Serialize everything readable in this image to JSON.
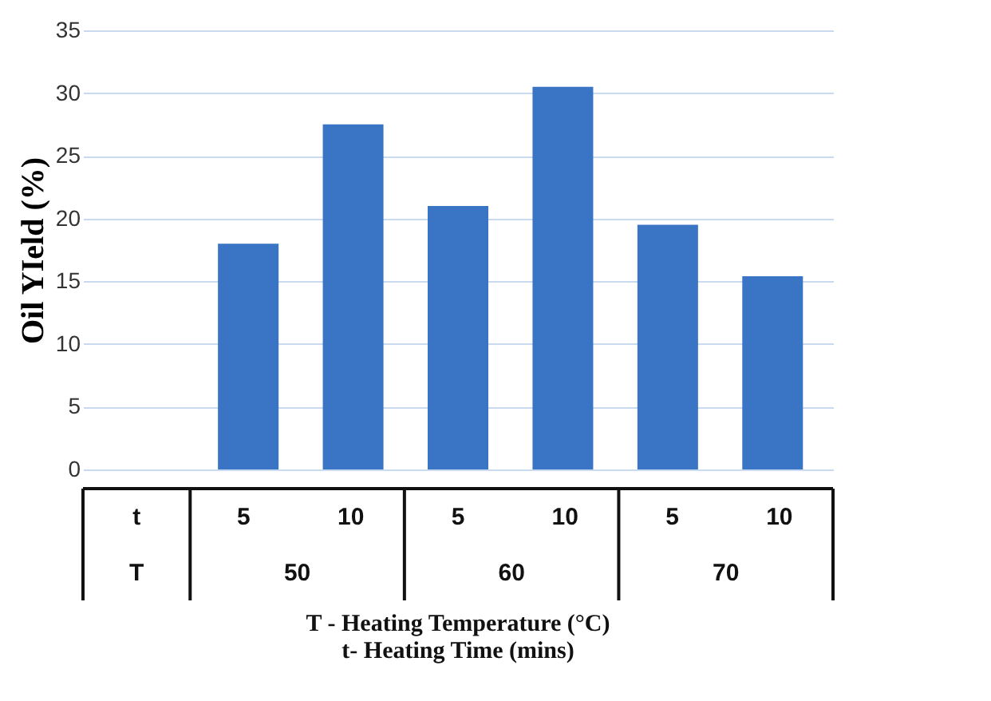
{
  "chart_data": {
    "type": "bar",
    "ylabel": "Oil YIeld (%)",
    "xlabel": "T - Heating Temperature (°C)\nt- Heating Time (mins)",
    "categories": [
      null,
      "5",
      "10",
      "5",
      "10",
      "5",
      "10"
    ],
    "values": [
      null,
      18,
      27.5,
      21,
      30.5,
      19.5,
      15.4
    ],
    "color": "#3a74c4",
    "ylim": [
      0,
      35
    ],
    "yticks": [
      0,
      5,
      10,
      15,
      20,
      25,
      30,
      35
    ],
    "grid": "y",
    "annotations": [
      "t",
      "T",
      "50",
      "60",
      "70"
    ]
  }
}
